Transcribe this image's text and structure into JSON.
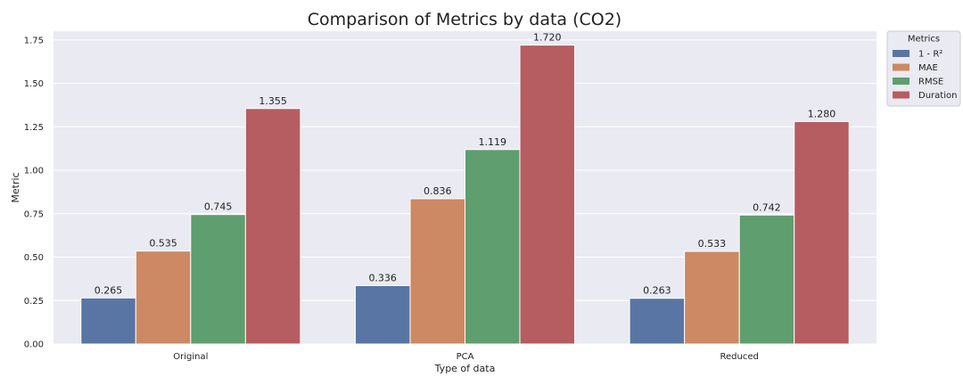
{
  "chart_data": {
    "type": "bar",
    "title": "Comparison of Metrics by data (CO2)",
    "xlabel": "Type of data",
    "ylabel": "Metric",
    "categories": [
      "Original",
      "PCA",
      "Reduced"
    ],
    "ylim": [
      0,
      1.8
    ],
    "yticks": [
      0.0,
      0.25,
      0.5,
      0.75,
      1.0,
      1.25,
      1.5,
      1.75
    ],
    "ytick_labels": [
      "0.00",
      "0.25",
      "0.50",
      "0.75",
      "1.00",
      "1.25",
      "1.50",
      "1.75"
    ],
    "grid": true,
    "legend": {
      "title": "Metrics",
      "placement": "outside-top-right"
    },
    "series": [
      {
        "name": "1 - R²",
        "color": "#5875a4",
        "values": [
          0.265,
          0.336,
          0.263
        ],
        "labels": [
          "0.265",
          "0.336",
          "0.263"
        ]
      },
      {
        "name": "MAE",
        "color": "#cc8963",
        "values": [
          0.535,
          0.836,
          0.533
        ],
        "labels": [
          "0.535",
          "0.836",
          "0.533"
        ]
      },
      {
        "name": "RMSE",
        "color": "#5f9e6e",
        "values": [
          0.745,
          1.119,
          0.742
        ],
        "labels": [
          "0.745",
          "1.119",
          "0.742"
        ]
      },
      {
        "name": "Duration",
        "color": "#b55d60",
        "values": [
          1.355,
          1.72,
          1.28
        ],
        "labels": [
          "1.355",
          "1.720",
          "1.280"
        ]
      }
    ]
  }
}
